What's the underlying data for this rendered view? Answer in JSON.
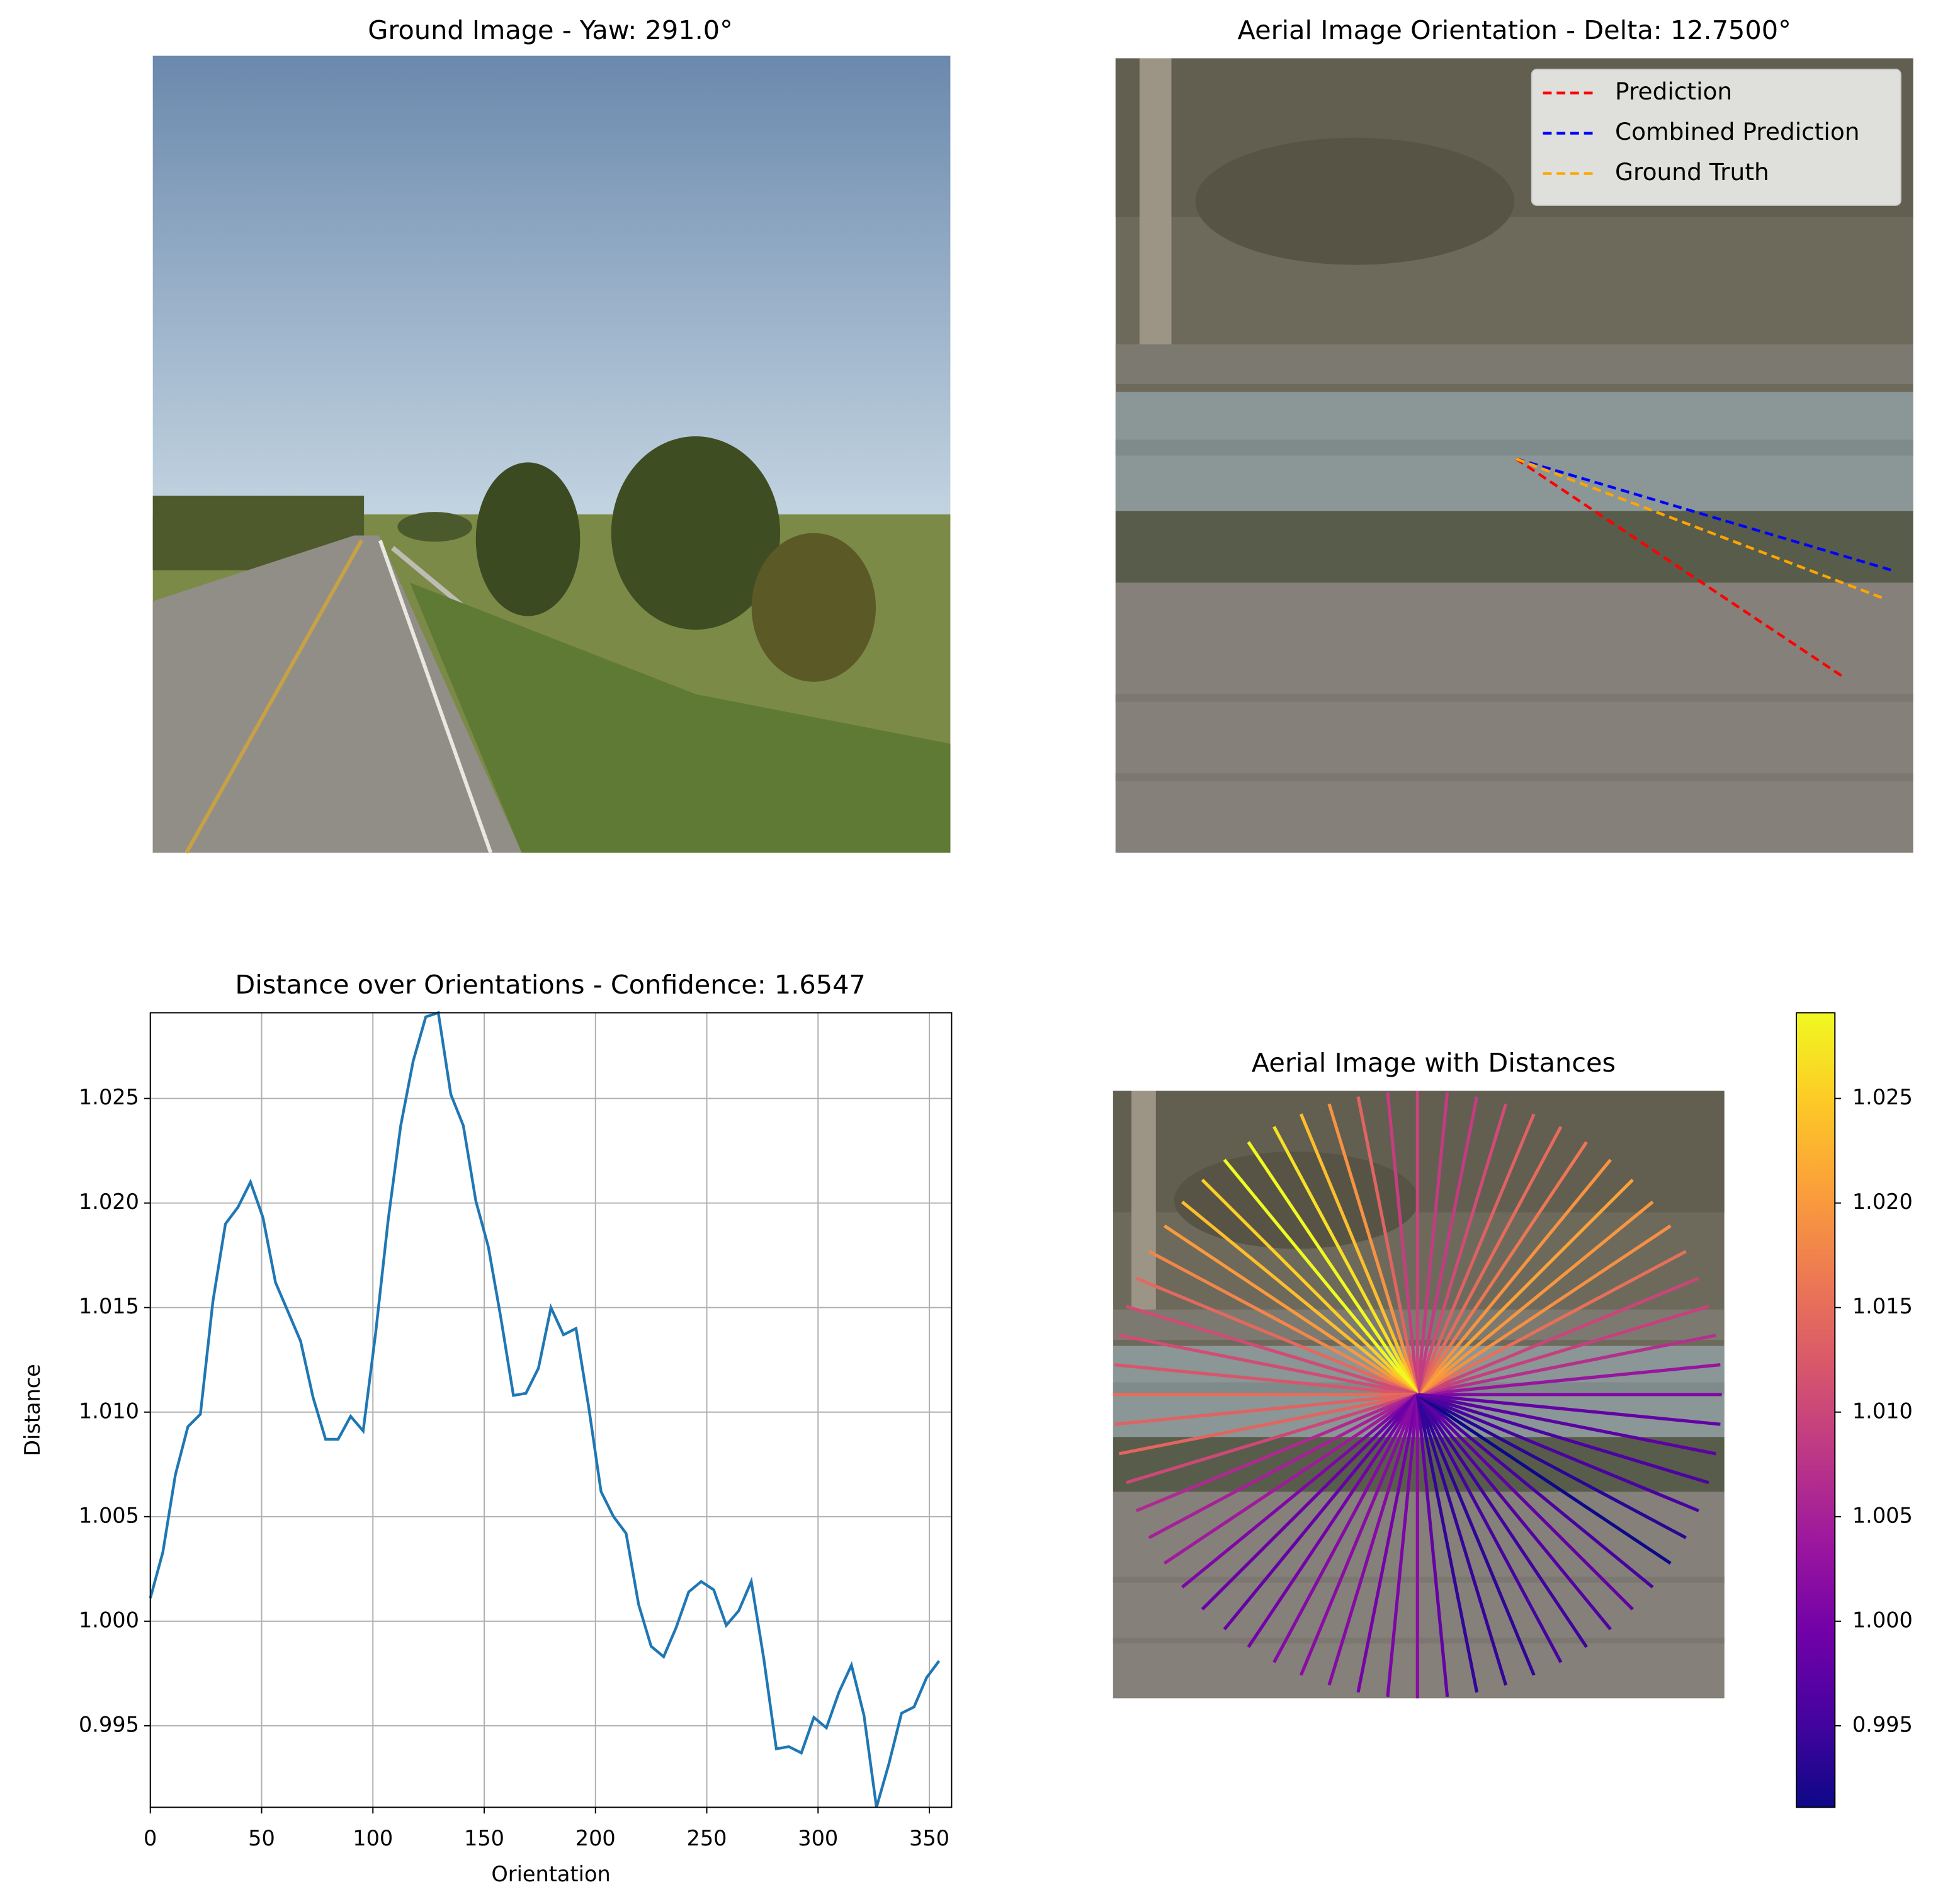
{
  "chart_data": [
    {
      "type": "image",
      "title": "Ground Image - Yaw: 291.0°"
    },
    {
      "type": "image-lines",
      "title": "Aerial Image Orientation - Delta: 12.7500°",
      "xlim": [
        0,
        100
      ],
      "ylim": [
        100,
        0
      ],
      "legend": "upper right",
      "series": [
        {
          "name": "Prediction",
          "color": "#ff0000",
          "x": [
            50.2,
            91.0
          ],
          "values": [
            50.4,
            77.7
          ]
        },
        {
          "name": "Combined Prediction",
          "color": "#0000ff",
          "x": [
            50.2,
            97.2
          ],
          "values": [
            50.4,
            64.4
          ]
        },
        {
          "name": "Ground Truth",
          "color": "#ffa500",
          "x": [
            50.2,
            96.1
          ],
          "values": [
            50.4,
            67.9
          ]
        }
      ]
    },
    {
      "type": "line",
      "title": "Distance over Orientations - Confidence: 1.6547",
      "xlabel": "Orientation",
      "ylabel": "Distance",
      "color": "#1f77b4",
      "grid": true,
      "x": [
        0,
        5.625,
        11.25,
        16.875,
        22.5,
        28.125,
        33.75,
        39.375,
        45,
        50.625,
        56.25,
        61.875,
        67.5,
        73.125,
        78.75,
        84.375,
        90,
        95.625,
        101.25,
        106.875,
        112.5,
        118.125,
        123.75,
        129.375,
        135,
        140.625,
        146.25,
        151.875,
        157.5,
        163.125,
        168.75,
        174.375,
        180,
        185.625,
        191.25,
        196.875,
        202.5,
        208.125,
        213.75,
        219.375,
        225,
        230.625,
        236.25,
        241.875,
        247.5,
        253.125,
        258.75,
        264.375,
        270,
        275.625,
        281.25,
        286.875,
        292.5,
        298.125,
        303.75,
        309.375,
        315,
        320.625,
        326.25,
        331.875,
        337.5,
        343.125,
        348.75,
        354.375
      ],
      "values": [
        1.0011,
        1.0033,
        1.007,
        1.0093,
        1.0099,
        1.0153,
        1.019,
        1.0198,
        1.021,
        1.0193,
        1.0162,
        1.0148,
        1.0134,
        1.0107,
        1.0087,
        1.0087,
        1.0098,
        1.0091,
        1.0138,
        1.0192,
        1.0237,
        1.0268,
        1.0289,
        1.0291,
        1.0252,
        1.0237,
        1.0201,
        1.0179,
        1.0145,
        1.0108,
        1.0109,
        1.0121,
        1.015,
        1.0137,
        1.014,
        1.0103,
        1.0062,
        1.005,
        1.0042,
        1.0008,
        0.9988,
        0.9983,
        0.9997,
        1.0014,
        1.0019,
        1.0015,
        0.9998,
        1.0005,
        1.0019,
        0.9982,
        0.9939,
        0.994,
        0.9937,
        0.9954,
        0.9949,
        0.9966,
        0.9979,
        0.9955,
        0.9911,
        0.9932,
        0.9956,
        0.9959,
        0.9973,
        0.9981
      ],
      "xlim": [
        0,
        360
      ],
      "ylim": [
        0.9911,
        1.0291
      ],
      "xticks": [
        0,
        50,
        100,
        150,
        200,
        250,
        300,
        350
      ],
      "yticks": [
        0.995,
        {
          "value": 1,
          "label": "1.000"
        },
        1.005,
        {
          "value": 1.01,
          "label": "1.010"
        },
        1.015,
        {
          "value": 1.02,
          "label": "1.020"
        },
        1.025
      ]
    },
    {
      "type": "radial",
      "title": "Aerial Image with Distances",
      "x": [
        0,
        5.625,
        11.25,
        16.875,
        22.5,
        28.125,
        33.75,
        39.375,
        45,
        50.625,
        56.25,
        61.875,
        67.5,
        73.125,
        78.75,
        84.375,
        90,
        95.625,
        101.25,
        106.875,
        112.5,
        118.125,
        123.75,
        129.375,
        135,
        140.625,
        146.25,
        151.875,
        157.5,
        163.125,
        168.75,
        174.375,
        180,
        185.625,
        191.25,
        196.875,
        202.5,
        208.125,
        213.75,
        219.375,
        225,
        230.625,
        236.25,
        241.875,
        247.5,
        253.125,
        258.75,
        264.375,
        270,
        275.625,
        281.25,
        286.875,
        292.5,
        298.125,
        303.75,
        309.375,
        315,
        320.625,
        326.25,
        331.875,
        337.5,
        343.125,
        348.75,
        354.375
      ],
      "values": [
        1.0011,
        1.0033,
        1.007,
        1.0093,
        1.0099,
        1.0153,
        1.019,
        1.0198,
        1.021,
        1.0193,
        1.0162,
        1.0148,
        1.0134,
        1.0107,
        1.0087,
        1.0087,
        1.0098,
        1.0091,
        1.0138,
        1.0192,
        1.0237,
        1.0268,
        1.0289,
        1.0291,
        1.0252,
        1.0237,
        1.0201,
        1.0179,
        1.0145,
        1.0108,
        1.0109,
        1.0121,
        1.015,
        1.0137,
        1.014,
        1.0103,
        1.0062,
        1.005,
        1.0042,
        1.0008,
        0.9988,
        0.9983,
        0.9997,
        1.0014,
        1.0019,
        1.0015,
        0.9998,
        1.0005,
        1.0019,
        0.9982,
        0.9939,
        0.994,
        0.9937,
        0.9954,
        0.9949,
        0.9966,
        0.9979,
        0.9955,
        0.9911,
        0.9932,
        0.9956,
        0.9959,
        0.9973,
        0.9981
      ],
      "colormap": [
        "#0d0887",
        "#46039f",
        "#7201a8",
        "#9c179e",
        "#bd3786",
        "#d8576b",
        "#ed7953",
        "#fb9f3a",
        "#fdca26",
        "#f0f921"
      ],
      "clim": [
        0.9911,
        1.0291
      ],
      "cticks": [
        0.995,
        {
          "value": 1,
          "label": "1.000"
        },
        1.005,
        {
          "value": 1.01,
          "label": "1.010"
        },
        1.015,
        {
          "value": 1.02,
          "label": "1.020"
        },
        1.025
      ]
    }
  ]
}
